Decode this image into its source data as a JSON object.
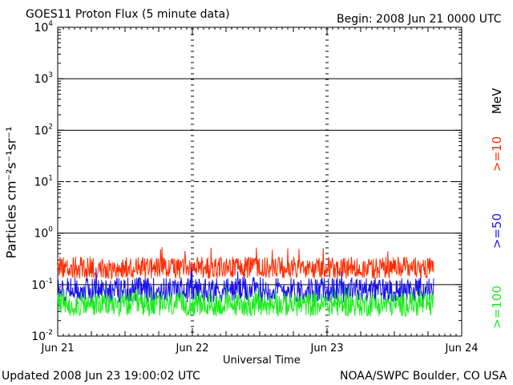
{
  "header": {
    "title": "GOES11 Proton Flux (5 minute data)",
    "begin": "Begin: 2008 Jun 21 0000 UTC"
  },
  "footer": {
    "updated": "Updated 2008 Jun 23 19:00:02 UTC",
    "source": "NOAA/SWPC Boulder, CO USA"
  },
  "chart_data": {
    "type": "line",
    "title": "GOES11 Proton Flux (5 minute data)",
    "xlabel": "Universal Time",
    "ylabel": "Particles cm⁻²s⁻¹sr⁻¹",
    "y_scale": "log",
    "ylim": [
      0.01,
      10000
    ],
    "y_ticks": [
      {
        "value": 0.01,
        "base": "10",
        "exp": "-2"
      },
      {
        "value": 0.1,
        "base": "10",
        "exp": "-1"
      },
      {
        "value": 1,
        "base": "10",
        "exp": "0"
      },
      {
        "value": 10,
        "base": "10",
        "exp": "1"
      },
      {
        "value": 100,
        "base": "10",
        "exp": "2"
      },
      {
        "value": 1000,
        "base": "10",
        "exp": "3"
      },
      {
        "value": 10000,
        "base": "10",
        "exp": "4"
      }
    ],
    "x_ticks": [
      "Jun 21",
      "Jun 22",
      "Jun 23",
      "Jun 24"
    ],
    "xlim": [
      "2008-06-21 00:00",
      "2008-06-24 00:00"
    ],
    "unit_label": "MeV",
    "threshold_lines": [
      {
        "value": 10,
        "style": "dashed"
      },
      {
        "value": 1,
        "style": "solid"
      },
      {
        "value": 0.1,
        "style": "solid"
      }
    ],
    "series": [
      {
        "name": ">=10",
        "color": "#ff2a00",
        "typical_low": 0.13,
        "typical_high": 0.35,
        "peak": 0.55
      },
      {
        "name": ">=50",
        "color": "#1a14e8",
        "typical_low": 0.045,
        "typical_high": 0.14,
        "peak": 0.22
      },
      {
        "name": ">=100",
        "color": "#1aee1a",
        "typical_low": 0.024,
        "typical_high": 0.07,
        "peak": 0.09
      }
    ],
    "data_end": "2008-06-23 19:00"
  }
}
